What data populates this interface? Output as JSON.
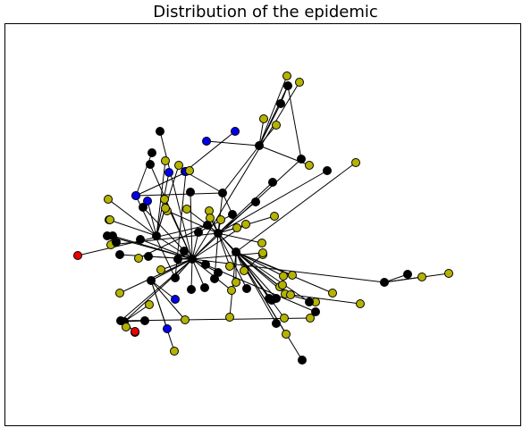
{
  "title": "Distribution of the epidemic",
  "colors": {
    "susceptible": "#000000",
    "exposed": "#b5b300",
    "infectious": "#0000ee",
    "dead": "#ee0000",
    "edge": "#000000",
    "node_outline": "#000000"
  },
  "node_states": {
    "k": "susceptible",
    "y": "exposed",
    "b": "infectious",
    "r": "dead"
  },
  "network": {
    "nodes": [
      {
        "id": 0,
        "s": "k"
      },
      {
        "id": 1,
        "s": "k"
      },
      {
        "id": 2,
        "s": "k"
      },
      {
        "id": 3,
        "s": "k"
      },
      {
        "id": 4,
        "s": "k"
      },
      {
        "id": 5,
        "s": "k"
      },
      {
        "id": 6,
        "s": "k"
      },
      {
        "id": 7,
        "s": "k"
      },
      {
        "id": 8,
        "s": "k"
      },
      {
        "id": 9,
        "s": "k"
      },
      {
        "id": 10,
        "s": "k"
      },
      {
        "id": 11,
        "s": "y"
      },
      {
        "id": 12,
        "s": "y"
      },
      {
        "id": 13,
        "s": "k"
      },
      {
        "id": 14,
        "s": "y"
      },
      {
        "id": 15,
        "s": "y"
      },
      {
        "id": 16,
        "s": "k"
      },
      {
        "id": 17,
        "s": "b"
      },
      {
        "id": 18,
        "s": "b"
      },
      {
        "id": 19,
        "s": "k"
      },
      {
        "id": 20,
        "s": "k"
      },
      {
        "id": 21,
        "s": "y"
      },
      {
        "id": 22,
        "s": "y"
      },
      {
        "id": 23,
        "s": "b"
      },
      {
        "id": 24,
        "s": "b"
      },
      {
        "id": 25,
        "s": "k"
      },
      {
        "id": 26,
        "s": "y"
      },
      {
        "id": 27,
        "s": "b"
      },
      {
        "id": 28,
        "s": "y"
      },
      {
        "id": 29,
        "s": "b"
      },
      {
        "id": 30,
        "s": "k"
      },
      {
        "id": 31,
        "s": "k"
      },
      {
        "id": 32,
        "s": "k"
      },
      {
        "id": 33,
        "s": "y"
      },
      {
        "id": 34,
        "s": "y"
      },
      {
        "id": 35,
        "s": "y"
      },
      {
        "id": 36,
        "s": "y"
      },
      {
        "id": 37,
        "s": "k"
      },
      {
        "id": 38,
        "s": "k"
      },
      {
        "id": 39,
        "s": "y"
      },
      {
        "id": 40,
        "s": "y"
      },
      {
        "id": 41,
        "s": "y"
      },
      {
        "id": 42,
        "s": "y"
      },
      {
        "id": 43,
        "s": "y"
      },
      {
        "id": 44,
        "s": "k"
      },
      {
        "id": 45,
        "s": "y"
      },
      {
        "id": 46,
        "s": "y"
      },
      {
        "id": 47,
        "s": "k"
      },
      {
        "id": 48,
        "s": "k"
      },
      {
        "id": 49,
        "s": "y"
      },
      {
        "id": 50,
        "s": "k"
      },
      {
        "id": 51,
        "s": "r"
      },
      {
        "id": 52,
        "s": "k"
      },
      {
        "id": 53,
        "s": "b"
      },
      {
        "id": 54,
        "s": "k"
      },
      {
        "id": 55,
        "s": "y"
      },
      {
        "id": 56,
        "s": "k"
      },
      {
        "id": 57,
        "s": "k"
      },
      {
        "id": 58,
        "s": "y"
      },
      {
        "id": 59,
        "s": "k"
      },
      {
        "id": 60,
        "s": "y"
      },
      {
        "id": 61,
        "s": "y"
      },
      {
        "id": 62,
        "s": "y"
      },
      {
        "id": 63,
        "s": "y"
      },
      {
        "id": 64,
        "s": "y"
      },
      {
        "id": 65,
        "s": "y"
      },
      {
        "id": 66,
        "s": "k"
      },
      {
        "id": 67,
        "s": "y"
      },
      {
        "id": 68,
        "s": "y"
      },
      {
        "id": 69,
        "s": "k"
      },
      {
        "id": 70,
        "s": "k"
      },
      {
        "id": 71,
        "s": "k"
      },
      {
        "id": 72,
        "s": "y"
      },
      {
        "id": 73,
        "s": "y"
      },
      {
        "id": 74,
        "s": "y"
      },
      {
        "id": 75,
        "s": "k"
      },
      {
        "id": 76,
        "s": "k"
      },
      {
        "id": 77,
        "s": "y"
      },
      {
        "id": 78,
        "s": "y"
      },
      {
        "id": 79,
        "s": "y"
      },
      {
        "id": 80,
        "s": "k"
      },
      {
        "id": 81,
        "s": "b"
      },
      {
        "id": 82,
        "s": "b"
      },
      {
        "id": 83,
        "s": "b"
      },
      {
        "id": 84,
        "s": "y"
      },
      {
        "id": 85,
        "s": "y"
      },
      {
        "id": 86,
        "s": "k"
      },
      {
        "id": 87,
        "s": "y"
      },
      {
        "id": 88,
        "s": "k"
      },
      {
        "id": 89,
        "s": "k"
      },
      {
        "id": 90,
        "s": "y"
      },
      {
        "id": 91,
        "s": "y"
      },
      {
        "id": 92,
        "s": "k"
      },
      {
        "id": 93,
        "s": "b"
      },
      {
        "id": 94,
        "s": "y"
      },
      {
        "id": 95,
        "s": "y"
      },
      {
        "id": 96,
        "s": "k"
      },
      {
        "id": 97,
        "s": "y"
      },
      {
        "id": 98,
        "s": "y"
      },
      {
        "id": 99,
        "s": "y"
      },
      {
        "id": 100,
        "s": "r"
      },
      {
        "id": 101,
        "s": "k"
      },
      {
        "id": 102,
        "s": "y"
      },
      {
        "id": 103,
        "s": "k"
      },
      {
        "id": 104,
        "s": "k"
      },
      {
        "id": 105,
        "s": "y"
      },
      {
        "id": 106,
        "s": "r"
      },
      {
        "id": 107,
        "s": "k"
      },
      {
        "id": 108,
        "s": "y"
      },
      {
        "id": 109,
        "s": "k"
      },
      {
        "id": 110,
        "s": "y"
      },
      {
        "id": 111,
        "s": "y"
      },
      {
        "id": 112,
        "s": "k"
      }
    ],
    "edges": [
      [
        0,
        1
      ],
      [
        0,
        4
      ],
      [
        0,
        5
      ],
      [
        0,
        6
      ],
      [
        0,
        8
      ],
      [
        0,
        9
      ],
      [
        0,
        10
      ],
      [
        0,
        13
      ],
      [
        0,
        19
      ],
      [
        0,
        20
      ],
      [
        0,
        25
      ],
      [
        0,
        31
      ],
      [
        0,
        32
      ],
      [
        0,
        38
      ],
      [
        0,
        40
      ],
      [
        0,
        43
      ],
      [
        0,
        44
      ],
      [
        0,
        49
      ],
      [
        0,
        50
      ],
      [
        0,
        52
      ],
      [
        0,
        54
      ],
      [
        0,
        59
      ],
      [
        0,
        61
      ],
      [
        0,
        70
      ],
      [
        0,
        75
      ],
      [
        0,
        79
      ],
      [
        0,
        86
      ],
      [
        0,
        91
      ],
      [
        0,
        101
      ],
      [
        0,
        103
      ],
      [
        0,
        107
      ],
      [
        0,
        108
      ],
      [
        1,
        2
      ],
      [
        1,
        3
      ],
      [
        1,
        11
      ],
      [
        1,
        12
      ],
      [
        1,
        16
      ],
      [
        1,
        21
      ],
      [
        1,
        22
      ],
      [
        1,
        26
      ],
      [
        1,
        34
      ],
      [
        1,
        37
      ],
      [
        1,
        41
      ],
      [
        1,
        42
      ],
      [
        1,
        56
      ],
      [
        1,
        60
      ],
      [
        1,
        62
      ],
      [
        1,
        66
      ],
      [
        1,
        76
      ],
      [
        1,
        80
      ],
      [
        1,
        92
      ],
      [
        2,
        14
      ],
      [
        2,
        15
      ],
      [
        2,
        57
      ],
      [
        2,
        58
      ],
      [
        2,
        63
      ],
      [
        2,
        65
      ],
      [
        2,
        69
      ],
      [
        2,
        71
      ],
      [
        2,
        72
      ],
      [
        2,
        73
      ],
      [
        2,
        74
      ],
      [
        2,
        77
      ],
      [
        2,
        78
      ],
      [
        2,
        85
      ],
      [
        2,
        87
      ],
      [
        2,
        88
      ],
      [
        2,
        112
      ],
      [
        3,
        7
      ],
      [
        3,
        17
      ],
      [
        3,
        18
      ],
      [
        3,
        30
      ],
      [
        4,
        23
      ],
      [
        4,
        24
      ],
      [
        4,
        27
      ],
      [
        4,
        28
      ],
      [
        4,
        33
      ],
      [
        4,
        39
      ],
      [
        4,
        46
      ],
      [
        7,
        29
      ],
      [
        7,
        35
      ],
      [
        7,
        36
      ],
      [
        7,
        45
      ],
      [
        7,
        47
      ],
      [
        7,
        48
      ],
      [
        7,
        55
      ],
      [
        9,
        95
      ],
      [
        9,
        96
      ],
      [
        9,
        99
      ],
      [
        9,
        100
      ],
      [
        10,
        53
      ],
      [
        10,
        82
      ],
      [
        10,
        94
      ],
      [
        10,
        98
      ],
      [
        13,
        81
      ],
      [
        13,
        83
      ],
      [
        14,
        97
      ],
      [
        15,
        67
      ],
      [
        15,
        68
      ],
      [
        15,
        64
      ],
      [
        16,
        51
      ],
      [
        16,
        84
      ],
      [
        17,
        93
      ],
      [
        18,
        89
      ],
      [
        18,
        90
      ],
      [
        19,
        109
      ],
      [
        19,
        110
      ],
      [
        19,
        111
      ],
      [
        20,
        105
      ],
      [
        20,
        106
      ],
      [
        24,
        102
      ],
      [
        25,
        104
      ],
      [
        30,
        31
      ],
      [
        47,
        48
      ],
      [
        48,
        44
      ]
    ]
  }
}
